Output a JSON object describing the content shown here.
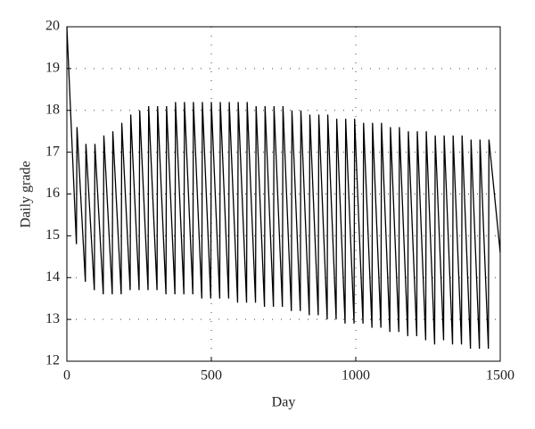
{
  "chart_data": {
    "type": "line",
    "xlabel": "Day",
    "ylabel": "Daily grade",
    "x": [
      0,
      33,
      35,
      64,
      66,
      95,
      97,
      126,
      128,
      157,
      159,
      188,
      190,
      219,
      221,
      250,
      252,
      281,
      283,
      312,
      314,
      343,
      345,
      374,
      376,
      405,
      407,
      436,
      438,
      467,
      469,
      498,
      500,
      529,
      531,
      560,
      562,
      591,
      593,
      622,
      624,
      653,
      655,
      684,
      686,
      715,
      717,
      746,
      748,
      777,
      779,
      808,
      810,
      839,
      841,
      870,
      872,
      901,
      903,
      932,
      934,
      963,
      965,
      994,
      996,
      1025,
      1027,
      1056,
      1058,
      1087,
      1089,
      1118,
      1120,
      1149,
      1151,
      1180,
      1182,
      1211,
      1213,
      1242,
      1244,
      1273,
      1275,
      1304,
      1306,
      1335,
      1337,
      1366,
      1368,
      1397,
      1399,
      1428,
      1430,
      1459,
      1461,
      1500
    ],
    "values": [
      20,
      14.8,
      17.6,
      13.9,
      17.2,
      13.7,
      17.2,
      13.6,
      17.4,
      13.6,
      17.5,
      13.6,
      17.7,
      13.7,
      17.9,
      13.7,
      18.0,
      13.7,
      18.1,
      13.7,
      18.1,
      13.6,
      18.1,
      13.6,
      18.2,
      13.6,
      18.2,
      13.6,
      18.2,
      13.5,
      18.2,
      13.5,
      18.2,
      13.5,
      18.2,
      13.5,
      18.2,
      13.4,
      18.2,
      13.4,
      18.2,
      13.4,
      18.1,
      13.3,
      18.1,
      13.3,
      18.1,
      13.3,
      18.1,
      13.2,
      18.0,
      13.2,
      18.0,
      13.1,
      17.9,
      13.1,
      17.9,
      13.0,
      17.9,
      13.0,
      17.8,
      12.9,
      17.8,
      12.9,
      17.8,
      12.9,
      17.7,
      12.8,
      17.7,
      12.8,
      17.7,
      12.7,
      17.6,
      12.7,
      17.6,
      12.6,
      17.5,
      12.6,
      17.5,
      12.5,
      17.5,
      12.4,
      17.4,
      12.5,
      17.4,
      12.4,
      17.4,
      12.4,
      17.4,
      12.3,
      17.3,
      12.3,
      17.3,
      12.3,
      17.3,
      14.6
    ],
    "color": "#000000",
    "xlim": [
      0,
      1500
    ],
    "xticks": [
      0,
      500,
      1000,
      1500
    ],
    "ylim": [
      12,
      20
    ],
    "yticks": [
      12,
      13,
      14,
      15,
      16,
      17,
      18,
      19,
      20
    ],
    "grid": true
  }
}
